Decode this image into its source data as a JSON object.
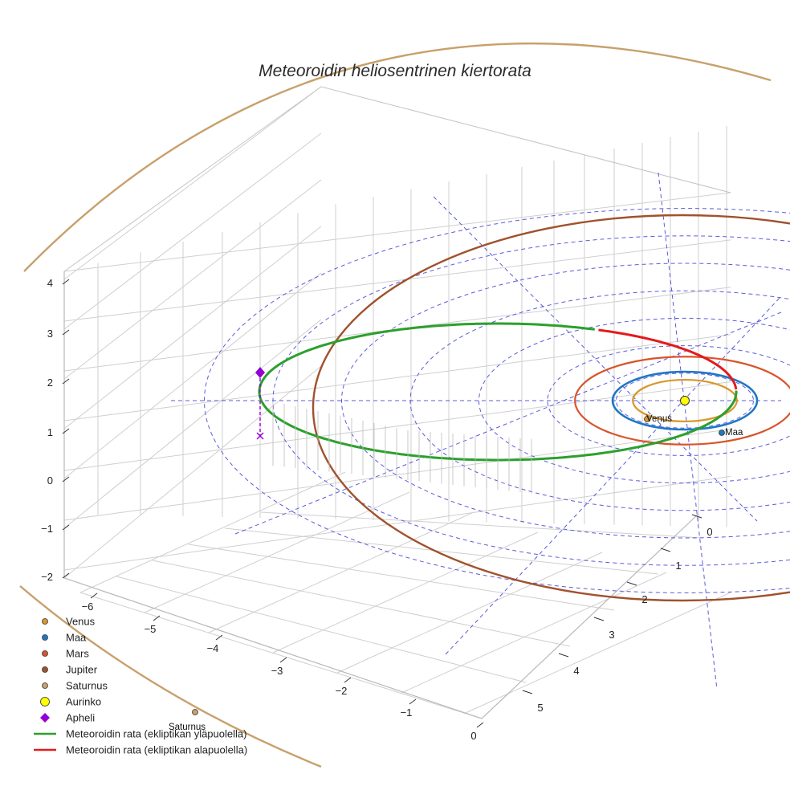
{
  "chart_data": {
    "type": "line",
    "title": "Meteoroidin heliosentrinen kiertorata",
    "axes": {
      "x_ticks": [
        "−6",
        "−5",
        "−4",
        "−3",
        "−2",
        "−1",
        "0"
      ],
      "y_ticks": [
        "0",
        "1",
        "2",
        "3",
        "4",
        "5"
      ],
      "z_ticks": [
        "4",
        "3",
        "2",
        "1",
        "0",
        "−1",
        "−2"
      ]
    },
    "series": [
      {
        "name": "Venus",
        "kind": "point",
        "color": "#d9962b",
        "label": "Venus"
      },
      {
        "name": "Maa",
        "kind": "point",
        "color": "#1f77c4",
        "label": "Maa"
      },
      {
        "name": "Mars",
        "kind": "point",
        "color": "#d9542b"
      },
      {
        "name": "Jupiter",
        "kind": "point",
        "color": "#a0522d"
      },
      {
        "name": "Saturnus",
        "kind": "point",
        "color": "#c8a06b",
        "label": "Saturnus"
      },
      {
        "name": "Aurinko",
        "kind": "point",
        "color": "#ffff00"
      },
      {
        "name": "Apheli",
        "kind": "diamond",
        "color": "#9400d3"
      },
      {
        "name": "Meteoroidin rata (ekliptikan yläpuolella)",
        "kind": "line",
        "color": "#2ca02c"
      },
      {
        "name": "Meteoroidin rata (ekliptikan alapuolella)",
        "kind": "line",
        "color": "#e41a1c"
      }
    ],
    "planet_orbits_au": {
      "Venus": 0.72,
      "Maa": 1.0,
      "Mars": 1.52,
      "Jupiter": 5.2,
      "Saturnus": 9.54
    },
    "aphelion_au": 6.2,
    "perihelion_au": 0.98,
    "legend": {
      "position": "bottom-left"
    },
    "grid": true
  }
}
